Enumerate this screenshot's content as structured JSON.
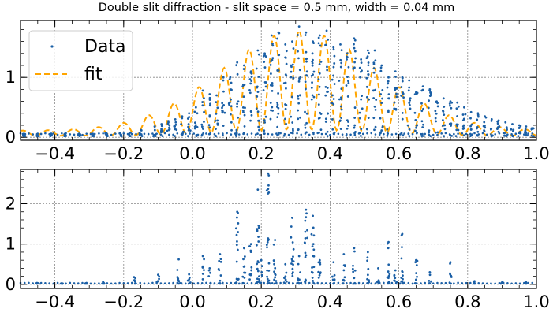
{
  "chart_data": {
    "title": "Double slit diffraction - slit space = 0.5 mm, width =  0.04 mm",
    "colors": {
      "data": "#1a5fa6",
      "fit": "#ffa500",
      "grid": "#888888"
    },
    "subplots": [
      {
        "type": "scatter",
        "xlim": [
          -0.5,
          1.0
        ],
        "ylim": [
          -0.05,
          1.95
        ],
        "xticks": [
          -0.4,
          -0.2,
          0.0,
          0.2,
          0.4,
          0.6,
          0.8,
          1.0
        ],
        "xtick_labels": [
          "−0.4",
          "−0.2",
          "0.0",
          "0.2",
          "0.4",
          "0.6",
          "0.8",
          "1.0"
        ],
        "yticks": [
          0,
          1
        ],
        "ytick_labels": [
          "0",
          "1"
        ],
        "grid": true,
        "legend": {
          "placement": "top-left",
          "entries": [
            {
              "label": "Data",
              "style": "dots"
            },
            {
              "label": "fit",
              "style": "dashed"
            }
          ]
        },
        "series": [
          {
            "name": "Data",
            "style": "scatter",
            "clusters": [
              [
                -0.49,
                0.06
              ],
              [
                -0.45,
                0.06
              ],
              [
                -0.41,
                0.06
              ],
              [
                -0.37,
                0.06
              ],
              [
                -0.33,
                0.06
              ],
              [
                -0.29,
                0.06
              ],
              [
                -0.25,
                0.07
              ],
              [
                -0.21,
                0.07
              ],
              [
                -0.18,
                0.08
              ],
              [
                -0.15,
                0.12
              ],
              [
                -0.11,
                0.18
              ],
              [
                -0.09,
                0.22
              ],
              [
                -0.07,
                0.27
              ],
              [
                -0.05,
                0.3
              ],
              [
                -0.03,
                0.35
              ],
              [
                -0.01,
                0.4
              ],
              [
                0.01,
                0.5
              ],
              [
                0.03,
                0.78
              ],
              [
                0.05,
                0.72
              ],
              [
                0.07,
                0.7
              ],
              [
                0.09,
                1.0
              ],
              [
                0.11,
                1.0
              ],
              [
                0.13,
                1.25
              ],
              [
                0.15,
                1.2
              ],
              [
                0.17,
                1.1
              ],
              [
                0.19,
                1.45
              ],
              [
                0.21,
                1.4
              ],
              [
                0.23,
                1.7
              ],
              [
                0.25,
                1.75
              ],
              [
                0.27,
                1.55
              ],
              [
                0.29,
                1.6
              ],
              [
                0.31,
                1.85
              ],
              [
                0.33,
                1.75
              ],
              [
                0.35,
                1.6
              ],
              [
                0.37,
                1.7
              ],
              [
                0.39,
                1.78
              ],
              [
                0.41,
                1.5
              ],
              [
                0.43,
                1.55
              ],
              [
                0.45,
                1.4
              ],
              [
                0.47,
                1.65
              ],
              [
                0.49,
                1.3
              ],
              [
                0.51,
                1.45
              ],
              [
                0.53,
                1.45
              ],
              [
                0.55,
                1.2
              ],
              [
                0.57,
                1.0
              ],
              [
                0.59,
                1.1
              ],
              [
                0.61,
                1.0
              ],
              [
                0.63,
                0.95
              ],
              [
                0.65,
                0.75
              ],
              [
                0.67,
                0.85
              ],
              [
                0.69,
                0.8
              ],
              [
                0.71,
                0.6
              ],
              [
                0.73,
                0.65
              ],
              [
                0.75,
                0.6
              ],
              [
                0.77,
                0.58
              ],
              [
                0.79,
                0.5
              ],
              [
                0.81,
                0.42
              ],
              [
                0.83,
                0.4
              ],
              [
                0.85,
                0.35
              ],
              [
                0.87,
                0.3
              ],
              [
                0.89,
                0.28
              ],
              [
                0.91,
                0.25
              ],
              [
                0.93,
                0.22
              ],
              [
                0.95,
                0.2
              ],
              [
                0.97,
                0.18
              ],
              [
                0.99,
                0.15
              ]
            ]
          },
          {
            "name": "fit",
            "style": "dashed-line",
            "envelope_peak_x": 0.31,
            "peak_value": 1.8,
            "fringe_period": 0.073
          }
        ]
      },
      {
        "type": "scatter",
        "xlim": [
          -0.5,
          1.0
        ],
        "ylim": [
          -0.1,
          2.85
        ],
        "xticks": [
          -0.4,
          -0.2,
          0.0,
          0.2,
          0.4,
          0.6,
          0.8,
          1.0
        ],
        "xtick_labels": [
          "−0.4",
          "−0.2",
          "0.0",
          "0.2",
          "0.4",
          "0.6",
          "0.8",
          "1.0"
        ],
        "yticks": [
          0,
          1,
          2
        ],
        "ytick_labels": [
          "0",
          "1",
          "2"
        ],
        "grid": true,
        "series": [
          {
            "style": "scatter",
            "columns": [
              [
                -0.45,
                0.03
              ],
              [
                -0.38,
                0.03
              ],
              [
                -0.31,
                0.03
              ],
              [
                -0.26,
                0.06
              ],
              [
                -0.17,
                0.18
              ],
              [
                -0.1,
                0.24
              ],
              [
                -0.04,
                0.62
              ],
              [
                -0.01,
                0.25
              ],
              [
                0.03,
                0.7
              ],
              [
                0.05,
                0.4
              ],
              [
                0.08,
                0.75
              ],
              [
                0.13,
                1.8
              ],
              [
                0.15,
                0.9
              ],
              [
                0.17,
                1.0
              ],
              [
                0.19,
                2.35
              ],
              [
                0.2,
                0.6
              ],
              [
                0.22,
                2.75
              ],
              [
                0.24,
                1.1
              ],
              [
                0.27,
                0.5
              ],
              [
                0.29,
                1.65
              ],
              [
                0.31,
                0.7
              ],
              [
                0.33,
                1.85
              ],
              [
                0.35,
                1.7
              ],
              [
                0.37,
                0.6
              ],
              [
                0.41,
                0.55
              ],
              [
                0.44,
                0.75
              ],
              [
                0.47,
                0.9
              ],
              [
                0.51,
                0.8
              ],
              [
                0.54,
                0.4
              ],
              [
                0.57,
                1.05
              ],
              [
                0.59,
                0.35
              ],
              [
                0.61,
                1.25
              ],
              [
                0.65,
                0.6
              ],
              [
                0.69,
                0.3
              ],
              [
                0.75,
                0.55
              ],
              [
                0.82,
                0.08
              ],
              [
                0.9,
                0.05
              ],
              [
                0.97,
                0.05
              ]
            ]
          }
        ]
      }
    ]
  }
}
